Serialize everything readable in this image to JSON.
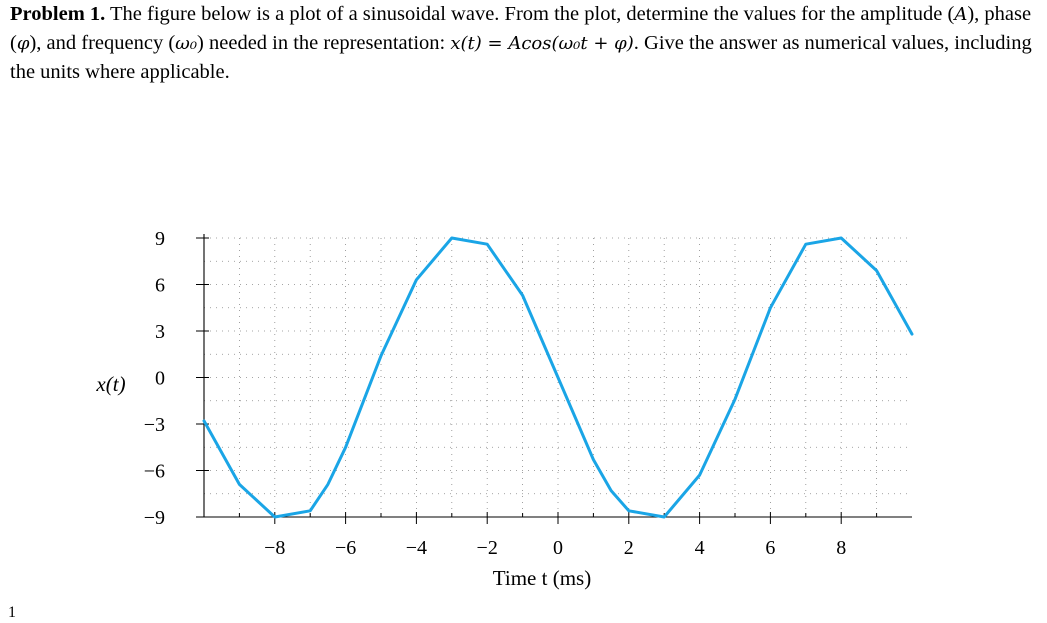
{
  "problem": {
    "label": "Problem 1.",
    "text_1": " The figure below is a plot of a sinusoidal wave. From the plot, determine the values for the amplitude (",
    "amplitude_symbol": "A",
    "text_2": "), phase (",
    "phase_symbol": "φ",
    "text_3": "), and frequency (",
    "frequency_symbol": "ω₀",
    "text_4": ") needed in the representation: ",
    "equation": "x(t) = Acos(ω₀t + φ)",
    "text_5": ". Give the answer as numerical values, including the units where applicable."
  },
  "page_number": "1",
  "chart_data": {
    "type": "line",
    "title": "",
    "xlabel": "Time t (ms)",
    "ylabel": "x(t)",
    "xlim": [
      -10,
      10
    ],
    "ylim": [
      -9,
      9
    ],
    "x_ticks": [
      -8,
      -6,
      -4,
      -2,
      0,
      2,
      4,
      6,
      8
    ],
    "x_tick_labels": [
      "−8",
      "−6",
      "−4",
      "−2",
      "0",
      "2",
      "4",
      "6",
      "8"
    ],
    "y_ticks": [
      9,
      6,
      3,
      0,
      -3,
      -6,
      -9
    ],
    "y_tick_labels": [
      "9",
      "6",
      "3",
      "0",
      "−3",
      "−6",
      "−9"
    ],
    "grid": "dotted",
    "series_color": "#1aa5e6",
    "series": [
      {
        "x": [
          -10,
          -9,
          -8,
          -7,
          -6.5,
          -6,
          -5,
          -4,
          -3,
          -2,
          -1,
          0,
          1,
          1.5,
          2,
          3,
          4,
          5,
          6,
          7,
          8,
          9,
          10
        ],
        "values": [
          -2.8,
          -6.9,
          -9,
          -8.6,
          -6.9,
          -4.5,
          1.4,
          6.3,
          9,
          8.6,
          5.3,
          0,
          -5.3,
          -7.3,
          -8.6,
          -9,
          -6.3,
          -1.4,
          4.5,
          8.6,
          9,
          6.9,
          2.8
        ]
      }
    ]
  }
}
